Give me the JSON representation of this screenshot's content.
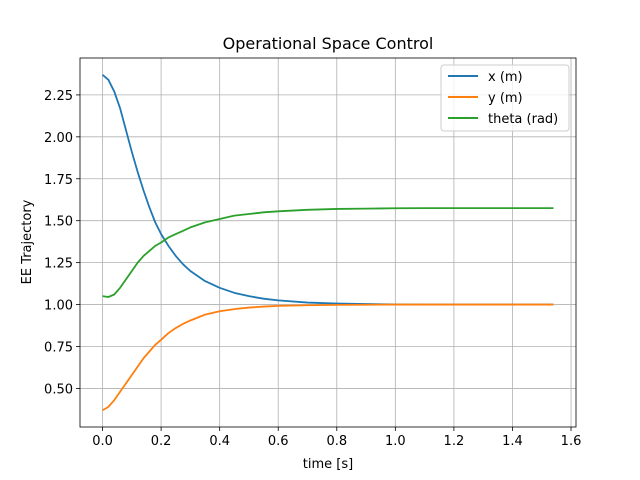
{
  "chart_data": {
    "type": "line",
    "title": "Operational Space Control",
    "xlabel": "time [s]",
    "ylabel": "EE Trajectory",
    "xlim": [
      -0.077,
      1.617
    ],
    "ylim": [
      0.27,
      2.47
    ],
    "grid": true,
    "legend_placement": "top-right",
    "x_ticks": [
      0.0,
      0.2,
      0.4,
      0.6,
      0.8,
      1.0,
      1.2,
      1.4,
      1.6
    ],
    "x_tick_labels": [
      "0.0",
      "0.2",
      "0.4",
      "0.6",
      "0.8",
      "1.0",
      "1.2",
      "1.4",
      "1.6"
    ],
    "y_ticks": [
      0.5,
      0.75,
      1.0,
      1.25,
      1.5,
      1.75,
      2.0,
      2.25
    ],
    "y_tick_labels": [
      "0.50",
      "0.75",
      "1.00",
      "1.25",
      "1.50",
      "1.75",
      "2.00",
      "2.25"
    ],
    "x": [
      0.0,
      0.02,
      0.04,
      0.06,
      0.08,
      0.1,
      0.12,
      0.14,
      0.16,
      0.18,
      0.2,
      0.225,
      0.25,
      0.275,
      0.3,
      0.35,
      0.4,
      0.45,
      0.5,
      0.55,
      0.6,
      0.7,
      0.8,
      0.9,
      1.0,
      1.1,
      1.2,
      1.3,
      1.4,
      1.54
    ],
    "series": [
      {
        "name": "x (m)",
        "color": "#1f77b4",
        "values": [
          2.37,
          2.34,
          2.27,
          2.17,
          2.04,
          1.91,
          1.79,
          1.68,
          1.58,
          1.49,
          1.42,
          1.35,
          1.29,
          1.24,
          1.2,
          1.14,
          1.1,
          1.07,
          1.05,
          1.035,
          1.025,
          1.012,
          1.006,
          1.003,
          1.001,
          1.0,
          1.0,
          1.0,
          1.0,
          1.0
        ]
      },
      {
        "name": "y (m)",
        "color": "#ff7f0e",
        "values": [
          0.37,
          0.39,
          0.43,
          0.48,
          0.53,
          0.58,
          0.63,
          0.68,
          0.72,
          0.76,
          0.79,
          0.83,
          0.86,
          0.885,
          0.905,
          0.94,
          0.96,
          0.973,
          0.982,
          0.988,
          0.992,
          0.996,
          0.998,
          0.999,
          1.0,
          1.0,
          1.0,
          1.0,
          1.0,
          1.0
        ]
      },
      {
        "name": "theta (rad)",
        "color": "#2ca02c",
        "values": [
          1.05,
          1.045,
          1.06,
          1.1,
          1.15,
          1.2,
          1.25,
          1.29,
          1.32,
          1.35,
          1.37,
          1.4,
          1.42,
          1.44,
          1.46,
          1.49,
          1.51,
          1.53,
          1.54,
          1.55,
          1.556,
          1.565,
          1.57,
          1.572,
          1.574,
          1.575,
          1.575,
          1.575,
          1.575,
          1.575
        ]
      }
    ]
  }
}
